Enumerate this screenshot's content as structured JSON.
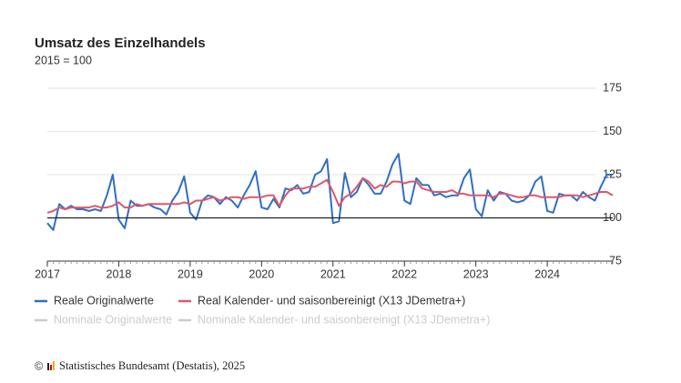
{
  "chart_data": {
    "type": "line",
    "title": "Umsatz des Einzelhandels",
    "subtitle": "2015 = 100",
    "categories": [
      "2017",
      null,
      null,
      null,
      null,
      null,
      null,
      null,
      null,
      null,
      null,
      null,
      "2018",
      null,
      null,
      null,
      null,
      null,
      null,
      null,
      null,
      null,
      null,
      null,
      "2019",
      null,
      null,
      null,
      null,
      null,
      null,
      null,
      null,
      null,
      null,
      null,
      "2020",
      null,
      null,
      null,
      null,
      null,
      null,
      null,
      null,
      null,
      null,
      null,
      "2021",
      null,
      null,
      null,
      null,
      null,
      null,
      null,
      null,
      null,
      null,
      null,
      "2022",
      null,
      null,
      null,
      null,
      null,
      null,
      null,
      null,
      null,
      null,
      null,
      "2023",
      null,
      null,
      null,
      null,
      null,
      null,
      null,
      null,
      null,
      null,
      null,
      "2024",
      null,
      null,
      null,
      null,
      null,
      null,
      null,
      null,
      null,
      null,
      null
    ],
    "series": [
      {
        "name": "Reale Originalwerte",
        "color": "#2e6fc4",
        "values": [
          97,
          93,
          108,
          105,
          107,
          105,
          105,
          104,
          105,
          104,
          113,
          125,
          99,
          94,
          110,
          107,
          107,
          108,
          106,
          105,
          102,
          110,
          115,
          124,
          103,
          99,
          110,
          113,
          112,
          108,
          112,
          110,
          106,
          113,
          119,
          127,
          106,
          105,
          111,
          106,
          117,
          116,
          119,
          114,
          115,
          125,
          127,
          134,
          97,
          98,
          126,
          112,
          115,
          123,
          119,
          114,
          114,
          121,
          131,
          137,
          110,
          108,
          123,
          119,
          119,
          113,
          114,
          112,
          113,
          113,
          123,
          128,
          105,
          101,
          116,
          110,
          115,
          114,
          110,
          109,
          110,
          113,
          121,
          124,
          104,
          103,
          114,
          113,
          113,
          110,
          115,
          112,
          110,
          118,
          125,
          125
        ]
      },
      {
        "name": "Real Kalender- und saisonbereinigt (X13 JDemetra+)",
        "color": "#e0566a",
        "values": [
          103,
          104,
          106,
          105,
          106,
          106,
          106,
          106,
          107,
          106,
          106,
          107,
          109,
          106,
          106,
          108,
          107,
          108,
          108,
          108,
          108,
          108,
          108,
          109,
          108,
          110,
          110,
          111,
          112,
          110,
          111,
          112,
          112,
          111,
          112,
          112,
          112,
          113,
          113,
          107,
          113,
          117,
          117,
          117,
          118,
          118,
          120,
          122,
          115,
          107,
          112,
          114,
          118,
          123,
          121,
          117,
          119,
          118,
          121,
          121,
          120,
          121,
          121,
          117,
          116,
          115,
          115,
          115,
          116,
          114,
          114,
          113,
          113,
          113,
          113,
          112,
          114,
          114,
          113,
          112,
          112,
          113,
          113,
          112,
          112,
          112,
          112,
          113,
          113,
          113,
          112,
          113,
          114,
          115,
          115,
          113
        ]
      }
    ],
    "inactive_legend": [
      "Nominale Originalwerte",
      "Nominale Kalender- und saisonbereinigt (X13 JDemetra+)"
    ],
    "inactive_color": "#cccccc",
    "ylim": [
      75,
      175
    ],
    "yticks": [
      75,
      100,
      125,
      150,
      175
    ],
    "baseline": 100,
    "grid": true,
    "source": "Statistisches Bundesamt (Destatis), 2025"
  }
}
